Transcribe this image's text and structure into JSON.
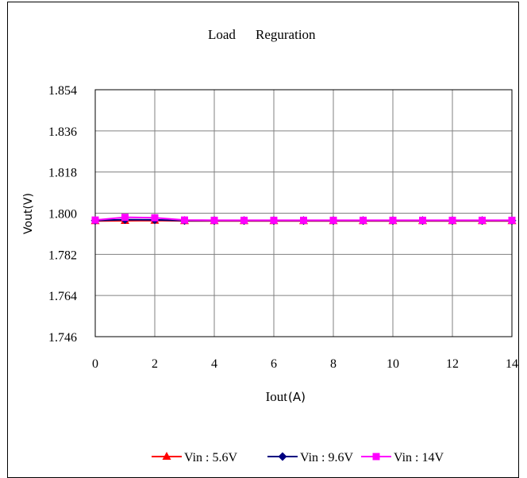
{
  "chart_data": {
    "type": "line",
    "title_parts": [
      "Load",
      "Reguration"
    ],
    "xlabel_main": "Iout",
    "xlabel_unit": "(A)",
    "ylabel": "Vout(V)",
    "xlim": [
      0,
      14
    ],
    "ylim": [
      1.746,
      1.854
    ],
    "x_ticks": [
      "0",
      "2",
      "4",
      "6",
      "8",
      "10",
      "12",
      "14"
    ],
    "y_ticks": [
      "1.854",
      "1.836",
      "1.818",
      "1.800",
      "1.782",
      "1.764",
      "1.746"
    ],
    "x": [
      0,
      1,
      2,
      3,
      4,
      5,
      6,
      7,
      8,
      9,
      10,
      11,
      12,
      13,
      14
    ],
    "grid": true,
    "legend_position": "bottom",
    "series": [
      {
        "name": "Vin : 5.6V",
        "color": "#ff0000",
        "marker": "triangle",
        "values": [
          1.7966,
          1.7967,
          1.7968,
          1.7966,
          1.7966,
          1.7966,
          1.7966,
          1.7966,
          1.7966,
          1.7966,
          1.7966,
          1.7966,
          1.7966,
          1.7966,
          1.7966
        ]
      },
      {
        "name": "Vin : 9.6V",
        "color": "#000080",
        "marker": "diamond",
        "values": [
          1.7968,
          1.7972,
          1.7971,
          1.7968,
          1.7968,
          1.7968,
          1.7968,
          1.7968,
          1.7968,
          1.7968,
          1.7968,
          1.7968,
          1.7968,
          1.7968,
          1.7968
        ]
      },
      {
        "name": "Vin : 14V",
        "color": "#ff00ff",
        "marker": "square",
        "values": [
          1.797,
          1.7982,
          1.798,
          1.797,
          1.7969,
          1.7969,
          1.7969,
          1.7969,
          1.7969,
          1.7969,
          1.7969,
          1.7969,
          1.7969,
          1.7969,
          1.7969
        ]
      }
    ]
  }
}
